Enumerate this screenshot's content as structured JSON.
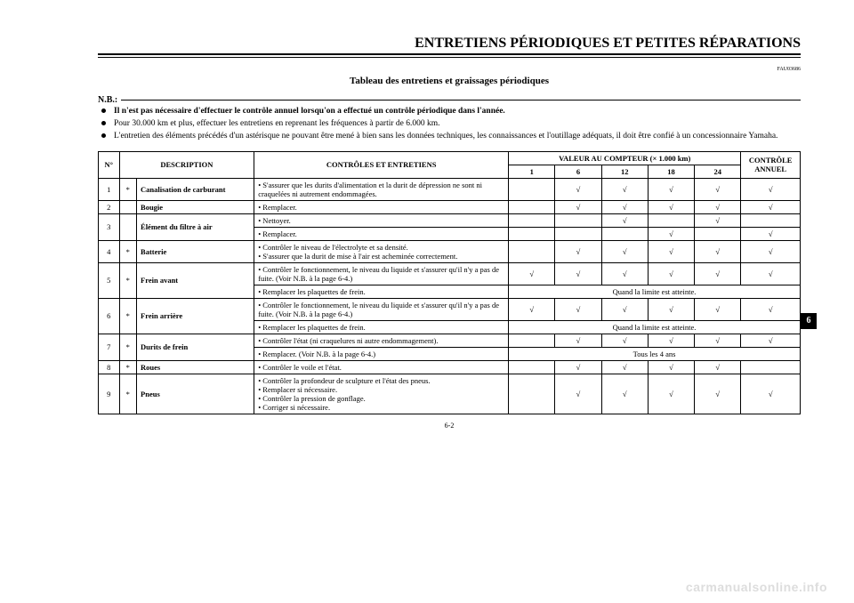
{
  "page": {
    "heading": "ENTRETIENS PÉRIODIQUES ET PETITES RÉPARATIONS",
    "ref": "FAU03686",
    "subtitle": "Tableau des entretiens et graissages périodiques",
    "nb_label": "N.B.:",
    "notes": [
      {
        "text": "Il n'est pas nécessaire d'effectuer le contrôle annuel lorsqu'on a effectué un contrôle périodique dans l'année.",
        "bold": true
      },
      {
        "text": "Pour 30.000 km et plus, effectuer les entretiens en reprenant les fréquences à partir de 6.000 km.",
        "bold": false
      },
      {
        "text": "L'entretien des éléments précédés d'un astérisque ne pouvant être mené à bien sans les données techniques, les connaissances et l'outillage adéquats, il doit être confié à un concessionnaire Yamaha.",
        "bold": false
      }
    ],
    "section_tab": "6",
    "footer": "6-2",
    "watermark": "carmanualsonline.info"
  },
  "table": {
    "header": {
      "num": "N°",
      "desc": "DESCRIPTION",
      "ctrl": "CONTRÔLES ET ENTRETIENS",
      "km_title": "VALEUR AU COMPTEUR (× 1.000 km)",
      "annuel": "CONTRÔLE ANNUEL",
      "km_values": [
        "1",
        "6",
        "12",
        "18",
        "24"
      ]
    },
    "check_symbol": "√",
    "rows": [
      {
        "num": "1",
        "ast": "*",
        "desc": "Canalisation de carburant",
        "lines": [
          {
            "ctrl": "• S'assurer que les durits d'alimentation et la durit de dépression ne sont ni craquelées ni autrement endommagées.",
            "km": [
              "",
              "√",
              "√",
              "√",
              "√"
            ],
            "annuel": "√"
          }
        ]
      },
      {
        "num": "2",
        "ast": "",
        "desc": "Bougie",
        "lines": [
          {
            "ctrl": "• Remplacer.",
            "km": [
              "",
              "√",
              "√",
              "√",
              "√"
            ],
            "annuel": "√"
          }
        ]
      },
      {
        "num": "3",
        "ast": "",
        "desc": "Élément du filtre à air",
        "lines": [
          {
            "ctrl": "• Nettoyer.",
            "km": [
              "",
              "",
              "√",
              "",
              "√"
            ],
            "annuel": ""
          },
          {
            "ctrl": "• Remplacer.",
            "km": [
              "",
              "",
              "",
              "√",
              ""
            ],
            "annuel": "√"
          }
        ]
      },
      {
        "num": "4",
        "ast": "*",
        "desc": "Batterie",
        "lines": [
          {
            "ctrl": "• Contrôler le niveau de l'électrolyte et sa densité.\n• S'assurer que la durit de mise à l'air est acheminée correctement.",
            "km": [
              "",
              "√",
              "√",
              "√",
              "√"
            ],
            "annuel": "√"
          }
        ]
      },
      {
        "num": "5",
        "ast": "*",
        "desc": "Frein avant",
        "lines": [
          {
            "ctrl": "• Contrôler le fonctionnement, le niveau du liquide et s'assurer qu'il n'y a pas de fuite. (Voir N.B. à la page 6-4.)",
            "km": [
              "√",
              "√",
              "√",
              "√",
              "√"
            ],
            "annuel": "√"
          },
          {
            "ctrl": "• Remplacer les plaquettes de frein.",
            "span": "Quand la limite est atteinte."
          }
        ]
      },
      {
        "num": "6",
        "ast": "*",
        "desc": "Frein arrière",
        "lines": [
          {
            "ctrl": "• Contrôler le fonctionnement, le niveau du liquide et s'assurer qu'il n'y a pas de fuite. (Voir N.B. à la page 6-4.)",
            "km": [
              "√",
              "√",
              "√",
              "√",
              "√"
            ],
            "annuel": "√"
          },
          {
            "ctrl": "• Remplacer les plaquettes de frein.",
            "span": "Quand la limite est atteinte."
          }
        ]
      },
      {
        "num": "7",
        "ast": "*",
        "desc": "Durits de frein",
        "lines": [
          {
            "ctrl": "• Contrôler l'état (ni craquelures ni autre endommagement).",
            "km": [
              "",
              "√",
              "√",
              "√",
              "√"
            ],
            "annuel": "√"
          },
          {
            "ctrl": "• Remplacer. (Voir N.B. à la page 6-4.)",
            "span": "Tous les 4 ans"
          }
        ]
      },
      {
        "num": "8",
        "ast": "*",
        "desc": "Roues",
        "lines": [
          {
            "ctrl": "• Contrôler le voile et l'état.",
            "km": [
              "",
              "√",
              "√",
              "√",
              "√"
            ],
            "annuel": ""
          }
        ]
      },
      {
        "num": "9",
        "ast": "*",
        "desc": "Pneus",
        "lines": [
          {
            "ctrl": "• Contrôler la profondeur de sculpture et l'état des pneus.\n• Remplacer si nécessaire.\n• Contrôler la pression de gonflage.\n• Corriger si nécessaire.",
            "km": [
              "",
              "√",
              "√",
              "√",
              "√"
            ],
            "annuel": "√"
          }
        ]
      }
    ]
  }
}
